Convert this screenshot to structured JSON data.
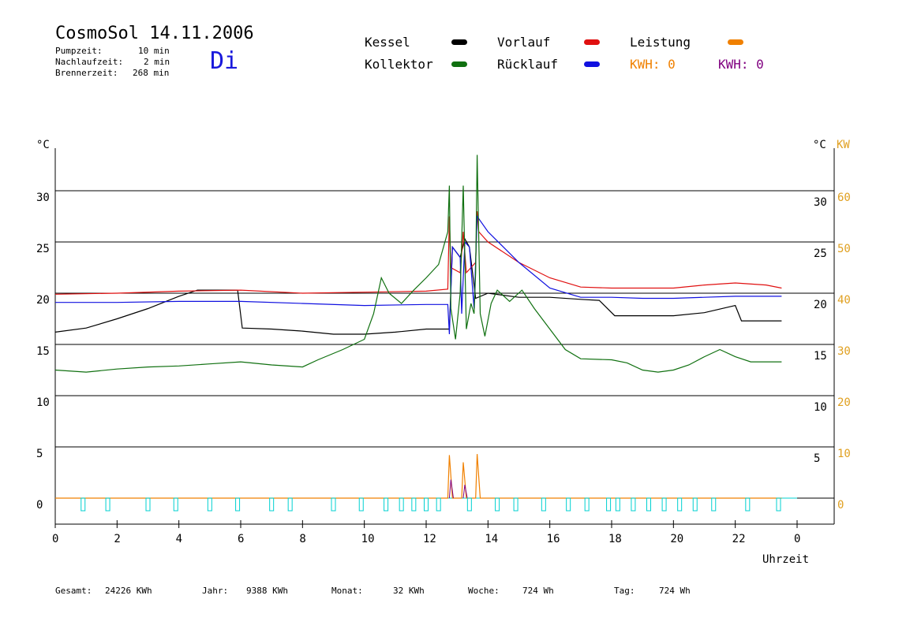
{
  "header": {
    "title": "CosmoSol 14.11.2006",
    "pumpzeit_label": "Pumpzeit:",
    "pumpzeit_value": "10 min",
    "nachlaufzeit_label": "Nachlaufzeit:",
    "nachlaufzeit_value": "2 min",
    "brennerzeit_label": "Brennerzeit:",
    "brennerzeit_value": "268 min",
    "weekday": "Di"
  },
  "legend": {
    "kessel": "Kessel",
    "vorlauf": "Vorlauf",
    "leistung": "Leistung",
    "kollektor": "Kollektor",
    "ruecklauf": "Rücklauf",
    "kwh1": "KWH: 0",
    "kwh2": "KWH: 0"
  },
  "colors": {
    "kessel": "#000000",
    "vorlauf": "#e01010",
    "leistung": "#f08000",
    "kollektor": "#107010",
    "ruecklauf": "#1010e0",
    "pump": "#00d0d0",
    "purple": "#800080"
  },
  "chart_data": {
    "type": "line",
    "xlabel": "Uhrzeit",
    "x_ticks": [
      "0",
      "2",
      "4",
      "6",
      "8",
      "10",
      "12",
      "14",
      "16",
      "18",
      "20",
      "22",
      "0"
    ],
    "xlim": [
      0,
      24
    ],
    "ylim_left": [
      -2.5,
      37
    ],
    "y_left_unit": "°C",
    "y_right_unit_c": "°C",
    "y_right_unit_kw": "KW",
    "y_left_ticks": [
      "0",
      "5",
      "10",
      "15",
      "20",
      "25",
      "30"
    ],
    "y_right_ticks_c": [
      "5",
      "10",
      "15",
      "20",
      "25",
      "30"
    ],
    "y_right_ticks_kw": [
      "0",
      "10",
      "20",
      "30",
      "40",
      "50",
      "60"
    ],
    "gridlines_y": [
      0,
      5,
      10,
      15,
      20,
      25,
      30
    ],
    "series": [
      {
        "name": "Kessel",
        "color": "#000000",
        "points": [
          [
            0,
            16.2
          ],
          [
            1,
            16.6
          ],
          [
            2,
            17.5
          ],
          [
            3,
            18.5
          ],
          [
            4,
            19.7
          ],
          [
            4.6,
            20.3
          ],
          [
            5.9,
            20.3
          ],
          [
            6.05,
            16.6
          ],
          [
            7,
            16.5
          ],
          [
            8,
            16.3
          ],
          [
            9,
            16.0
          ],
          [
            10,
            16.0
          ],
          [
            11,
            16.2
          ],
          [
            12,
            16.5
          ],
          [
            12.75,
            16.5
          ],
          [
            12.85,
            24.5
          ],
          [
            13.1,
            23.5
          ],
          [
            13.25,
            25.3
          ],
          [
            13.4,
            24.5
          ],
          [
            13.6,
            19.5
          ],
          [
            14,
            20.0
          ],
          [
            15,
            19.6
          ],
          [
            16,
            19.6
          ],
          [
            17,
            19.4
          ],
          [
            17.6,
            19.3
          ],
          [
            17.8,
            18.7
          ],
          [
            18.1,
            17.8
          ],
          [
            19,
            17.8
          ],
          [
            20,
            17.8
          ],
          [
            21,
            18.1
          ],
          [
            22,
            18.8
          ],
          [
            22.2,
            17.3
          ],
          [
            23,
            17.3
          ],
          [
            23.5,
            17.3
          ]
        ]
      },
      {
        "name": "Vorlauf",
        "color": "#e01010",
        "points": [
          [
            0,
            19.9
          ],
          [
            2,
            20.0
          ],
          [
            4,
            20.2
          ],
          [
            6,
            20.3
          ],
          [
            8,
            20.0
          ],
          [
            10,
            20.1
          ],
          [
            12,
            20.2
          ],
          [
            12.7,
            20.4
          ],
          [
            12.75,
            27.5
          ],
          [
            12.8,
            22.5
          ],
          [
            13.1,
            22.0
          ],
          [
            13.2,
            26.0
          ],
          [
            13.3,
            22.0
          ],
          [
            13.6,
            23.0
          ],
          [
            13.65,
            28.0
          ],
          [
            13.7,
            26.0
          ],
          [
            14,
            25.0
          ],
          [
            15,
            23.0
          ],
          [
            16,
            21.5
          ],
          [
            17,
            20.6
          ],
          [
            18,
            20.5
          ],
          [
            19,
            20.5
          ],
          [
            20,
            20.5
          ],
          [
            21,
            20.8
          ],
          [
            22,
            21.0
          ],
          [
            23,
            20.8
          ],
          [
            23.5,
            20.5
          ]
        ]
      },
      {
        "name": "Rücklauf",
        "color": "#1010e0",
        "points": [
          [
            0,
            19.1
          ],
          [
            2,
            19.1
          ],
          [
            4,
            19.2
          ],
          [
            6,
            19.2
          ],
          [
            8,
            19.0
          ],
          [
            10,
            18.8
          ],
          [
            12,
            18.9
          ],
          [
            12.7,
            18.9
          ],
          [
            12.75,
            16.0
          ],
          [
            12.85,
            24.5
          ],
          [
            13.1,
            23.5
          ],
          [
            13.15,
            18.0
          ],
          [
            13.25,
            25.0
          ],
          [
            13.4,
            24.5
          ],
          [
            13.55,
            18.5
          ],
          [
            13.65,
            27.5
          ],
          [
            14,
            26.0
          ],
          [
            15,
            23.0
          ],
          [
            16,
            20.5
          ],
          [
            17,
            19.6
          ],
          [
            18,
            19.6
          ],
          [
            19,
            19.5
          ],
          [
            20,
            19.5
          ],
          [
            21,
            19.6
          ],
          [
            22,
            19.7
          ],
          [
            23,
            19.7
          ],
          [
            23.5,
            19.7
          ]
        ]
      },
      {
        "name": "Kollektor",
        "color": "#107010",
        "points": [
          [
            0,
            12.5
          ],
          [
            1,
            12.3
          ],
          [
            2,
            12.6
          ],
          [
            3,
            12.8
          ],
          [
            4,
            12.9
          ],
          [
            5,
            13.1
          ],
          [
            6,
            13.3
          ],
          [
            7,
            13.0
          ],
          [
            8,
            12.8
          ],
          [
            8.5,
            13.5
          ],
          [
            9.3,
            14.5
          ],
          [
            10,
            15.5
          ],
          [
            10.3,
            18.0
          ],
          [
            10.55,
            21.5
          ],
          [
            10.8,
            20.0
          ],
          [
            11.2,
            19.0
          ],
          [
            11.6,
            20.3
          ],
          [
            12,
            21.5
          ],
          [
            12.4,
            22.8
          ],
          [
            12.7,
            26.0
          ],
          [
            12.75,
            30.5
          ],
          [
            12.8,
            18.5
          ],
          [
            12.95,
            15.5
          ],
          [
            13.1,
            20.0
          ],
          [
            13.2,
            30.5
          ],
          [
            13.3,
            16.5
          ],
          [
            13.45,
            19.0
          ],
          [
            13.55,
            18.0
          ],
          [
            13.6,
            22.0
          ],
          [
            13.65,
            33.5
          ],
          [
            13.75,
            18.0
          ],
          [
            13.9,
            15.8
          ],
          [
            14.1,
            19.0
          ],
          [
            14.3,
            20.3
          ],
          [
            14.7,
            19.2
          ],
          [
            15.1,
            20.3
          ],
          [
            15.5,
            18.5
          ],
          [
            16,
            16.5
          ],
          [
            16.5,
            14.5
          ],
          [
            17,
            13.6
          ],
          [
            18,
            13.5
          ],
          [
            18.5,
            13.2
          ],
          [
            19,
            12.5
          ],
          [
            19.5,
            12.3
          ],
          [
            20,
            12.5
          ],
          [
            20.5,
            13.0
          ],
          [
            21,
            13.8
          ],
          [
            21.5,
            14.5
          ],
          [
            22,
            13.8
          ],
          [
            22.5,
            13.3
          ],
          [
            23,
            13.3
          ],
          [
            23.5,
            13.3
          ]
        ]
      },
      {
        "name": "Leistung",
        "color": "#f08000",
        "points": [
          [
            0,
            0
          ],
          [
            12.7,
            0
          ],
          [
            12.75,
            4.2
          ],
          [
            12.85,
            0
          ],
          [
            13.15,
            0
          ],
          [
            13.2,
            3.5
          ],
          [
            13.3,
            0
          ],
          [
            13.6,
            0
          ],
          [
            13.65,
            4.3
          ],
          [
            13.75,
            0
          ],
          [
            23.5,
            0
          ]
        ]
      }
    ],
    "pump_marker_hours": [
      0.9,
      1.7,
      3.0,
      3.9,
      5.0,
      5.9,
      7.0,
      7.6,
      9.0,
      9.9,
      10.7,
      11.2,
      11.6,
      12.0,
      12.4,
      13.4,
      14.3,
      14.9,
      15.8,
      16.6,
      17.2,
      17.9,
      18.2,
      18.7,
      19.2,
      19.7,
      20.2,
      20.7,
      21.3,
      22.4,
      23.4
    ],
    "purple_spikes": [
      [
        12.8,
        1.8
      ],
      [
        13.25,
        1.3
      ]
    ]
  },
  "footer": {
    "gesamt_label": "Gesamt:",
    "gesamt_value": "24226 KWh",
    "jahr_label": "Jahr:",
    "jahr_value": "9388 KWh",
    "monat_label": "Monat:",
    "monat_value": "32 KWh",
    "woche_label": "Woche:",
    "woche_value": "724 Wh",
    "tag_label": "Tag:",
    "tag_value": "724 Wh"
  }
}
